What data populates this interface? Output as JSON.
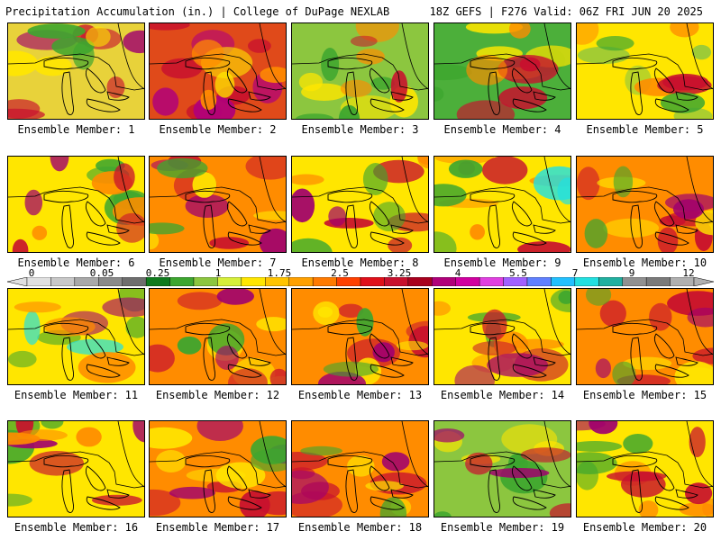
{
  "header": {
    "left": "Precipitation Accumulation (in.) | College of DuPage NEXLAB",
    "right": "18Z GEFS | F276 Valid: 06Z FRI JUN 20 2025"
  },
  "panels": [
    {
      "label": "Ensemble Member: 1",
      "base": "#e8d23a",
      "blobs": [
        [
          "#c8102e",
          0.35
        ],
        [
          "#a0006e",
          0.12
        ],
        [
          "#3da62f",
          0.18
        ],
        [
          "#ffe600",
          0.2
        ]
      ]
    },
    {
      "label": "Ensemble Member: 2",
      "base": "#e04a1a",
      "blobs": [
        [
          "#c8102e",
          0.35
        ],
        [
          "#b0007a",
          0.25
        ],
        [
          "#ffe600",
          0.15
        ],
        [
          "#ff8c00",
          0.2
        ]
      ]
    },
    {
      "label": "Ensemble Member: 3",
      "base": "#8cc63f",
      "blobs": [
        [
          "#ffe600",
          0.3
        ],
        [
          "#3da62f",
          0.25
        ],
        [
          "#ff8c00",
          0.2
        ],
        [
          "#c8102e",
          0.15
        ]
      ]
    },
    {
      "label": "Ensemble Member: 4",
      "base": "#4caf3a",
      "blobs": [
        [
          "#3da62f",
          0.3
        ],
        [
          "#ffe600",
          0.25
        ],
        [
          "#c8102e",
          0.25
        ],
        [
          "#ff8c00",
          0.15
        ]
      ]
    },
    {
      "label": "Ensemble Member: 5",
      "base": "#ffe600",
      "blobs": [
        [
          "#8cc63f",
          0.3
        ],
        [
          "#ff8c00",
          0.2
        ],
        [
          "#c8102e",
          0.15
        ],
        [
          "#3da62f",
          0.15
        ]
      ]
    },
    {
      "label": "Ensemble Member: 6",
      "base": "#ffe600",
      "blobs": [
        [
          "#3da62f",
          0.3
        ],
        [
          "#ff8c00",
          0.2
        ],
        [
          "#c8102e",
          0.2
        ],
        [
          "#a0006e",
          0.1
        ]
      ]
    },
    {
      "label": "Ensemble Member: 7",
      "base": "#ff8c00",
      "blobs": [
        [
          "#c8102e",
          0.3
        ],
        [
          "#a0006e",
          0.2
        ],
        [
          "#ffe600",
          0.2
        ],
        [
          "#3da62f",
          0.1
        ]
      ]
    },
    {
      "label": "Ensemble Member: 8",
      "base": "#ffe600",
      "blobs": [
        [
          "#c8102e",
          0.25
        ],
        [
          "#a0006e",
          0.15
        ],
        [
          "#3da62f",
          0.2
        ],
        [
          "#ff8c00",
          0.2
        ]
      ]
    },
    {
      "label": "Ensemble Member: 9",
      "base": "#ffe600",
      "blobs": [
        [
          "#ff8c00",
          0.25
        ],
        [
          "#c8102e",
          0.2
        ],
        [
          "#3da62f",
          0.2
        ],
        [
          "#22e0e0",
          0.06
        ]
      ]
    },
    {
      "label": "Ensemble Member: 10",
      "base": "#ff8c00",
      "blobs": [
        [
          "#c8102e",
          0.35
        ],
        [
          "#ffe600",
          0.2
        ],
        [
          "#3da62f",
          0.15
        ],
        [
          "#a0006e",
          0.1
        ]
      ]
    },
    {
      "label": "Ensemble Member: 11",
      "base": "#ffe600",
      "blobs": [
        [
          "#3da62f",
          0.3
        ],
        [
          "#a0006e",
          0.15
        ],
        [
          "#22e0e0",
          0.06
        ],
        [
          "#ff8c00",
          0.2
        ]
      ]
    },
    {
      "label": "Ensemble Member: 12",
      "base": "#ff8c00",
      "blobs": [
        [
          "#ffe600",
          0.3
        ],
        [
          "#c8102e",
          0.25
        ],
        [
          "#3da62f",
          0.15
        ],
        [
          "#a0006e",
          0.05
        ]
      ]
    },
    {
      "label": "Ensemble Member: 13",
      "base": "#ff8c00",
      "blobs": [
        [
          "#c8102e",
          0.3
        ],
        [
          "#ffe600",
          0.25
        ],
        [
          "#a0006e",
          0.15
        ],
        [
          "#3da62f",
          0.1
        ]
      ]
    },
    {
      "label": "Ensemble Member: 14",
      "base": "#ffe600",
      "blobs": [
        [
          "#3da62f",
          0.25
        ],
        [
          "#ff8c00",
          0.25
        ],
        [
          "#c8102e",
          0.2
        ],
        [
          "#a0006e",
          0.05
        ]
      ]
    },
    {
      "label": "Ensemble Member: 15",
      "base": "#ff8c00",
      "blobs": [
        [
          "#c8102e",
          0.35
        ],
        [
          "#a0006e",
          0.15
        ],
        [
          "#ffe600",
          0.2
        ],
        [
          "#3da62f",
          0.1
        ]
      ]
    },
    {
      "label": "Ensemble Member: 16",
      "base": "#ffe600",
      "blobs": [
        [
          "#3da62f",
          0.3
        ],
        [
          "#c8102e",
          0.2
        ],
        [
          "#a0006e",
          0.15
        ],
        [
          "#ff8c00",
          0.2
        ]
      ]
    },
    {
      "label": "Ensemble Member: 17",
      "base": "#ff8c00",
      "blobs": [
        [
          "#c8102e",
          0.3
        ],
        [
          "#a0006e",
          0.2
        ],
        [
          "#ffe600",
          0.25
        ],
        [
          "#3da62f",
          0.1
        ]
      ]
    },
    {
      "label": "Ensemble Member: 18",
      "base": "#ff8c00",
      "blobs": [
        [
          "#c8102e",
          0.35
        ],
        [
          "#ffe600",
          0.2
        ],
        [
          "#3da62f",
          0.1
        ],
        [
          "#a0006e",
          0.1
        ]
      ]
    },
    {
      "label": "Ensemble Member: 19",
      "base": "#8cc63f",
      "blobs": [
        [
          "#3da62f",
          0.3
        ],
        [
          "#ffe600",
          0.25
        ],
        [
          "#c8102e",
          0.2
        ],
        [
          "#a0006e",
          0.08
        ]
      ]
    },
    {
      "label": "Ensemble Member: 20",
      "base": "#ffe600",
      "blobs": [
        [
          "#3da62f",
          0.25
        ],
        [
          "#ff8c00",
          0.25
        ],
        [
          "#c8102e",
          0.25
        ],
        [
          "#a0006e",
          0.05
        ]
      ]
    }
  ],
  "colorbar": {
    "tick_labels": [
      "0",
      "0.05",
      "0.25",
      "1",
      "1.75",
      "2.5",
      "3.25",
      "4",
      "5.5",
      "7",
      "9",
      "12"
    ],
    "colors": [
      "#e0e0e0",
      "#c8c8c8",
      "#a8a8a8",
      "#8a8a8a",
      "#6e6e6e",
      "#0f7a1d",
      "#3da62f",
      "#8cc63f",
      "#d6ef3a",
      "#ffe600",
      "#ffc400",
      "#ffa000",
      "#ff7a00",
      "#ff4000",
      "#e0101a",
      "#c8102e",
      "#a8001e",
      "#b0007a",
      "#d000a0",
      "#e040e0",
      "#a060ff",
      "#6080ff",
      "#22c0ff",
      "#22e0e0",
      "#20b0a0",
      "#909090",
      "#7a7a7a",
      "#b0b0b0"
    ]
  }
}
